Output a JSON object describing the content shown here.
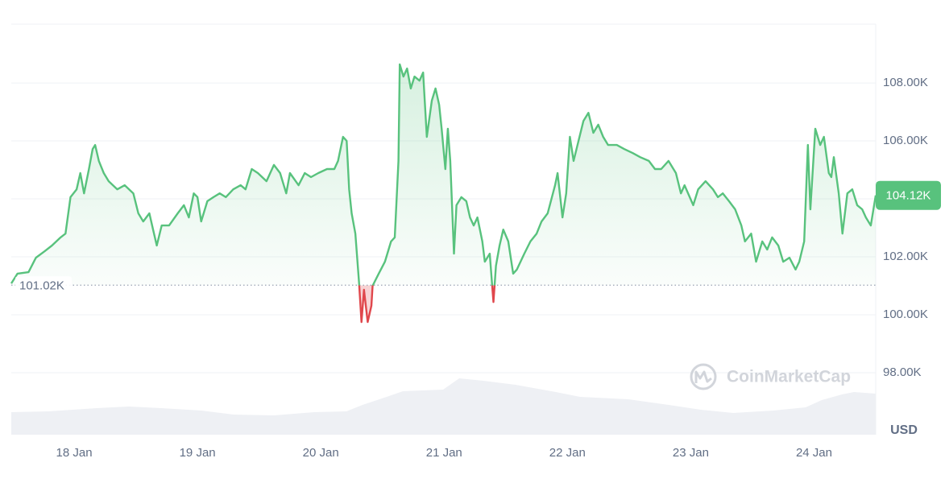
{
  "chart_data": {
    "type": "line",
    "xlim": [
      17.49,
      24.5
    ],
    "xticks": [
      {
        "value": 18,
        "label": "18 Jan"
      },
      {
        "value": 19,
        "label": "19 Jan"
      },
      {
        "value": 20,
        "label": "20 Jan"
      },
      {
        "value": 21,
        "label": "21 Jan"
      },
      {
        "value": 22,
        "label": "22 Jan"
      },
      {
        "value": 23,
        "label": "23 Jan"
      },
      {
        "value": 24,
        "label": "24 Jan"
      }
    ],
    "ylim": [
      95860,
      110030
    ],
    "yticks": [
      {
        "value": 98000,
        "label": "98.00K"
      },
      {
        "value": 100000,
        "label": "100.00K"
      },
      {
        "value": 102000,
        "label": "102.00K"
      },
      {
        "value": 104000,
        "label": "104.00K"
      },
      {
        "value": 106000,
        "label": "106.00K"
      },
      {
        "value": 108000,
        "label": "108.00K"
      }
    ],
    "y_axis_label": "USD",
    "grid": true,
    "watermark": "CoinMarketCap",
    "baseline": {
      "value": 101020,
      "label": "101.02K"
    },
    "current_price": {
      "value": 104120,
      "label": "104.12K"
    },
    "colors": {
      "above": "#58c27d",
      "below": "#e0474c"
    },
    "x": [
      17.49,
      17.54,
      17.63,
      17.69,
      17.76,
      17.82,
      17.89,
      17.93,
      17.97,
      18.02,
      18.05,
      18.08,
      18.12,
      18.15,
      18.17,
      18.2,
      18.24,
      18.28,
      18.35,
      18.41,
      18.48,
      18.52,
      18.56,
      18.61,
      18.64,
      18.67,
      18.71,
      18.77,
      18.84,
      18.89,
      18.93,
      18.97,
      19,
      19.03,
      19.08,
      19.13,
      19.18,
      19.23,
      19.29,
      19.35,
      19.39,
      19.44,
      19.49,
      19.56,
      19.62,
      19.67,
      19.72,
      19.75,
      19.82,
      19.87,
      19.92,
      19.98,
      20.05,
      20.11,
      20.14,
      20.18,
      20.21,
      20.23,
      20.25,
      20.28,
      20.31,
      20.33,
      20.35,
      20.38,
      20.41,
      20.42,
      20.47,
      20.52,
      20.57,
      20.6,
      20.63,
      20.64,
      20.67,
      20.7,
      20.73,
      20.76,
      20.8,
      20.83,
      20.86,
      20.9,
      20.93,
      20.96,
      20.98,
      21.01,
      21.03,
      21.05,
      21.08,
      21.1,
      21.14,
      21.18,
      21.21,
      21.24,
      21.27,
      21.31,
      21.33,
      21.37,
      21.4,
      21.42,
      21.45,
      21.48,
      21.52,
      21.56,
      21.59,
      21.65,
      21.7,
      21.75,
      21.79,
      21.84,
      21.9,
      21.92,
      21.96,
      21.99,
      22.02,
      22.05,
      22.09,
      22.13,
      22.17,
      22.21,
      22.25,
      22.29,
      22.33,
      22.4,
      22.46,
      22.53,
      22.59,
      22.66,
      22.71,
      22.76,
      22.82,
      22.88,
      22.92,
      22.95,
      23.02,
      23.06,
      23.12,
      23.18,
      23.22,
      23.26,
      23.31,
      23.36,
      23.41,
      23.44,
      23.49,
      23.53,
      23.58,
      23.62,
      23.66,
      23.71,
      23.75,
      23.8,
      23.85,
      23.88,
      23.92,
      23.95,
      23.97,
      24.01,
      24.05,
      24.08,
      24.12,
      24.14,
      24.16,
      24.2,
      24.23,
      24.27,
      24.31,
      24.35,
      24.39,
      24.42,
      24.46,
      24.5
    ],
    "values": [
      101080,
      101420,
      101470,
      101970,
      102190,
      102390,
      102670,
      102800,
      104060,
      104330,
      104890,
      104190,
      105030,
      105720,
      105860,
      105310,
      104890,
      104610,
      104330,
      104470,
      104190,
      103500,
      103220,
      103500,
      102940,
      102390,
      103080,
      103080,
      103500,
      103780,
      103360,
      104190,
      104060,
      103220,
      103920,
      104060,
      104190,
      104060,
      104330,
      104470,
      104330,
      105030,
      104890,
      104610,
      105170,
      104890,
      104190,
      104890,
      104470,
      104890,
      104750,
      104890,
      105030,
      105030,
      105310,
      106140,
      106000,
      104330,
      103500,
      102800,
      101140,
      99750,
      100860,
      99750,
      100310,
      101000,
      101420,
      101830,
      102530,
      102670,
      105310,
      108640,
      108220,
      108500,
      107810,
      108220,
      108080,
      108360,
      106140,
      107390,
      107810,
      107250,
      106420,
      105030,
      106420,
      105310,
      102110,
      103780,
      104060,
      103920,
      103360,
      103080,
      103360,
      102530,
      101830,
      102110,
      100440,
      101690,
      102390,
      102940,
      102530,
      101420,
      101560,
      102110,
      102530,
      102800,
      103220,
      103500,
      104470,
      104890,
      103360,
      104190,
      106140,
      105310,
      106000,
      106690,
      106970,
      106280,
      106560,
      106140,
      105860,
      105860,
      105720,
      105580,
      105440,
      105310,
      105030,
      105030,
      105310,
      104890,
      104190,
      104470,
      103780,
      104330,
      104610,
      104330,
      104060,
      104190,
      103920,
      103640,
      103080,
      102530,
      102800,
      101830,
      102530,
      102250,
      102670,
      102390,
      101830,
      101970,
      101560,
      101830,
      102530,
      105860,
      103640,
      106420,
      105860,
      106140,
      104890,
      104750,
      105440,
      104190,
      102800,
      104190,
      104330,
      103780,
      103640,
      103360,
      103080,
      104120
    ]
  }
}
